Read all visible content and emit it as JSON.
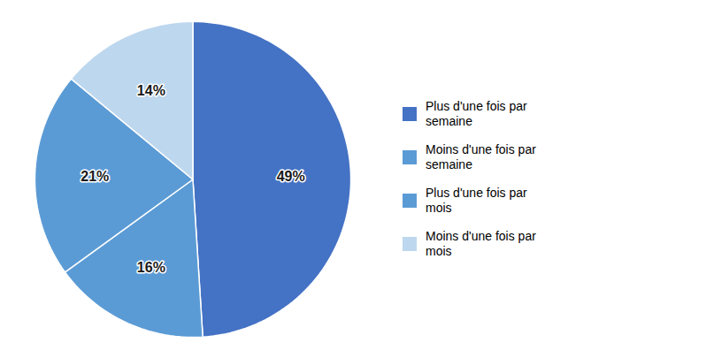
{
  "chart_data": {
    "type": "pie",
    "categories": [
      "Plus d'une fois par\nsemaine",
      "Moins d'une fois par\nsemaine",
      "Plus d'une fois par\nmois",
      "Moins d'une fois par\nmois"
    ],
    "values": [
      49,
      16,
      21,
      14
    ],
    "value_labels": [
      "49%",
      "16%",
      "21%",
      "14%"
    ],
    "colors": [
      "#4472C4",
      "#5B9BD5",
      "#5B9BD5",
      "#BDD7EE"
    ],
    "data_labels": true,
    "legend": "right"
  }
}
